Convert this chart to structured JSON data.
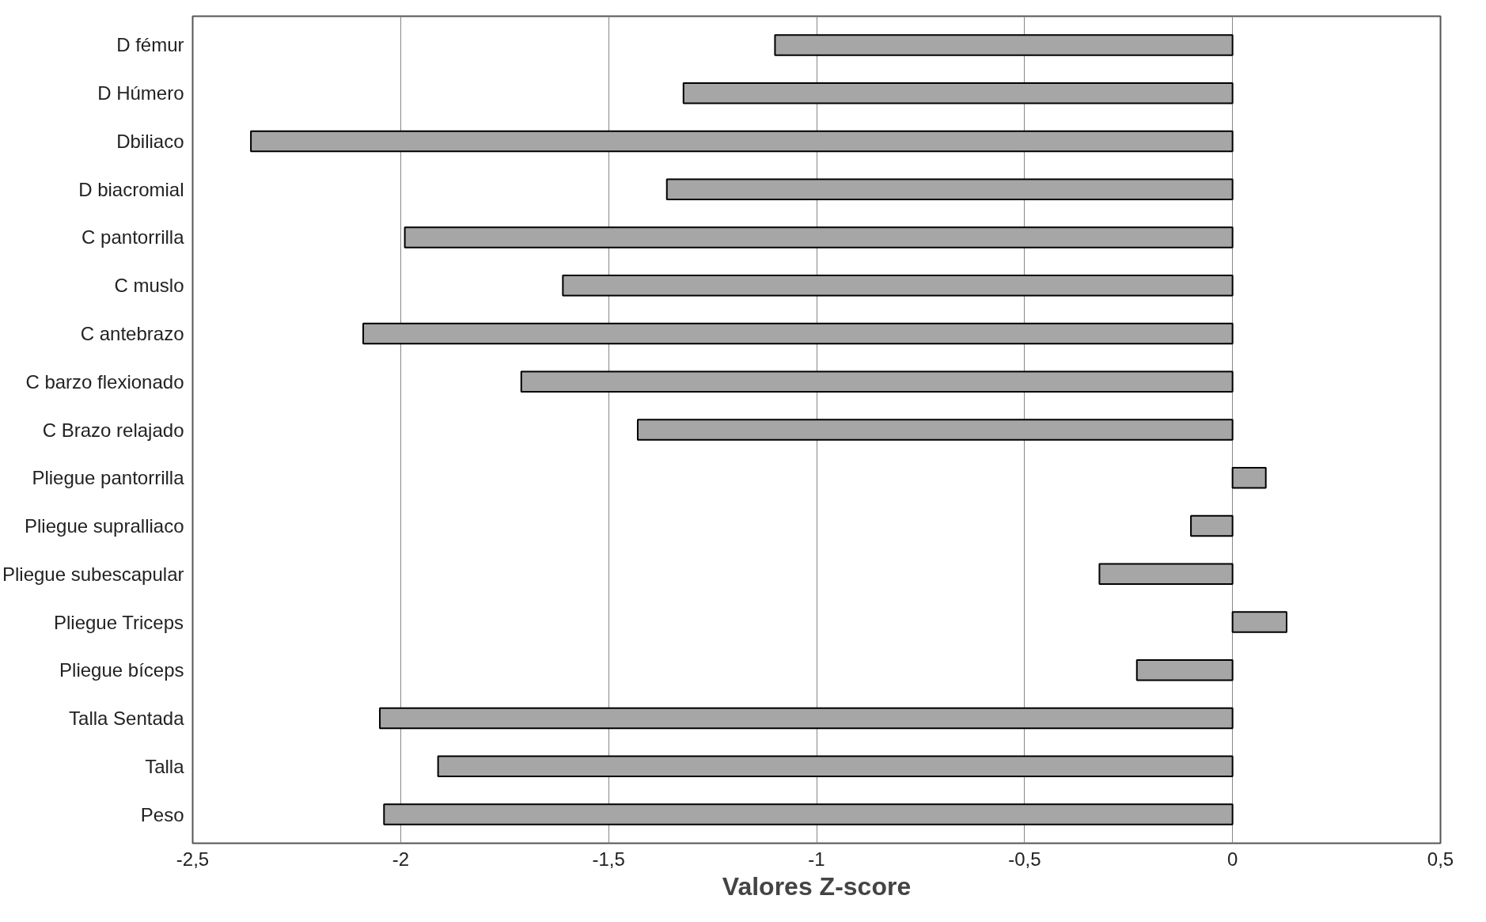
{
  "chart_data": {
    "type": "bar",
    "orientation": "horizontal",
    "xlabel": "Valores Z-score",
    "categories": [
      "D fémur",
      "D Húmero",
      "Dbiliaco",
      "D biacromial",
      "C pantorrilla",
      "C muslo",
      "C antebrazo",
      "C barzo flexionado",
      "C Brazo relajado",
      "Pliegue pantorrilla",
      "Pliegue supralliaco",
      "Pliegue subescapular",
      "Pliegue Triceps",
      "Pliegue bíceps",
      "Talla Sentada",
      "Talla",
      "Peso"
    ],
    "values": [
      -1.1,
      -1.32,
      -2.36,
      -1.36,
      -1.99,
      -1.61,
      -2.09,
      -1.71,
      -1.43,
      0.08,
      -0.1,
      -0.32,
      0.13,
      -0.23,
      -2.05,
      -1.91,
      -2.04
    ],
    "color": "#a6a6a6",
    "xlim": [
      -2.5,
      0.5
    ],
    "xticks": [
      {
        "value": -2.5,
        "label": "-2,5"
      },
      -2,
      {
        "value": -1.5,
        "label": "-1,5"
      },
      -1,
      {
        "value": -0.5,
        "label": "-0,5"
      },
      0,
      {
        "value": 0.5,
        "label": "0,5"
      }
    ],
    "grid": "x"
  }
}
